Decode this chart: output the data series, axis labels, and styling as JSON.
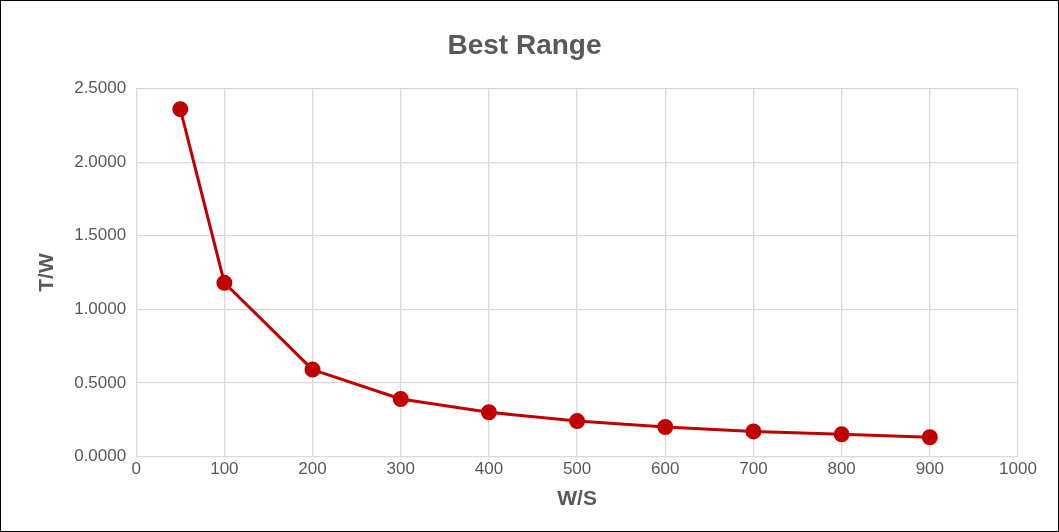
{
  "chart_data": {
    "type": "line",
    "title": "Best Range",
    "xlabel": "W/S",
    "ylabel": "T/W",
    "x": [
      50,
      100,
      200,
      300,
      400,
      500,
      600,
      700,
      800,
      900
    ],
    "series": [
      {
        "color": "#c00000",
        "values": [
          2.36,
          1.18,
          0.59,
          0.39,
          0.3,
          0.24,
          0.2,
          0.17,
          0.15,
          0.13
        ]
      }
    ],
    "xlim": [
      0,
      1000
    ],
    "xticks": [
      0,
      100,
      200,
      300,
      400,
      500,
      600,
      700,
      800,
      900,
      1000
    ],
    "ylim": [
      0,
      2.5
    ],
    "yticks": [
      {
        "value": 0,
        "label": "0.0000"
      },
      {
        "value": 0.5,
        "label": "0.5000"
      },
      {
        "value": 1,
        "label": "1.0000"
      },
      {
        "value": 1.5,
        "label": "1.5000"
      },
      {
        "value": 2,
        "label": "2.0000"
      },
      {
        "value": 2.5,
        "label": "2.5000"
      }
    ],
    "grid": true,
    "marker": "circle",
    "line_style": "solid",
    "legend": false
  }
}
